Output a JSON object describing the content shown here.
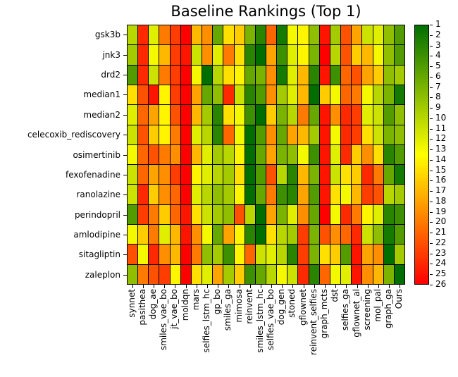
{
  "chart_data": {
    "type": "heatmap",
    "title": "Baseline Rankings (Top 1)",
    "rows": [
      "gsk3b",
      "jnk3",
      "drd2",
      "median1",
      "median2",
      "celecoxib_rediscovery",
      "osimertinib",
      "fexofenadine",
      "ranolazine",
      "perindopril",
      "amlodipine",
      "sitagliptin",
      "zaleplon"
    ],
    "columns": [
      "synnet",
      "pasithea",
      "dog_ae",
      "smiles_vae_bo",
      "jt_vae_bo",
      "moldqn",
      "mars",
      "selfies_lstm_hc",
      "gp_bo",
      "smiles_ga",
      "mimosa",
      "reinvent",
      "smiles_lstm_hc",
      "selfies_vae_bo",
      "dog_gen",
      "stoned",
      "gflownet",
      "reinvent_selfies",
      "graph_mcts",
      "dst",
      "selfies_ga",
      "gflownet_al",
      "screening",
      "mol_pal",
      "graph_ga",
      "Ours"
    ],
    "values": [
      [
        10,
        24,
        12,
        20,
        23,
        26,
        17,
        19,
        6,
        15,
        16,
        7,
        3,
        21,
        2,
        13,
        14,
        8,
        25,
        9,
        22,
        18,
        11,
        12,
        8,
        5
      ],
      [
        9,
        24,
        13,
        17,
        23,
        25,
        11,
        19,
        12,
        20,
        15,
        3,
        1,
        18,
        4,
        12,
        14,
        7,
        26,
        10,
        22,
        16,
        17,
        13,
        8,
        5
      ],
      [
        5,
        24,
        11,
        20,
        23,
        26,
        13,
        1,
        10,
        15,
        14,
        6,
        7,
        19,
        2,
        12,
        17,
        3,
        25,
        4,
        21,
        22,
        18,
        16,
        8,
        9
      ],
      [
        15,
        22,
        25,
        14,
        23,
        26,
        18,
        6,
        8,
        24,
        11,
        3,
        5,
        19,
        9,
        12,
        17,
        1,
        16,
        13,
        21,
        20,
        13,
        10,
        7,
        2
      ],
      [
        12,
        21,
        18,
        14,
        22,
        26,
        17,
        9,
        3,
        15,
        13,
        4,
        1,
        16,
        7,
        10,
        20,
        6,
        25,
        19,
        24,
        23,
        12,
        11,
        5,
        8
      ],
      [
        11,
        22,
        16,
        14,
        20,
        26,
        12,
        10,
        3,
        21,
        13,
        1,
        5,
        19,
        6,
        18,
        17,
        9,
        25,
        13,
        24,
        23,
        15,
        11,
        7,
        8
      ],
      [
        13,
        21,
        22,
        20,
        19,
        26,
        17,
        12,
        9,
        10,
        14,
        1,
        6,
        18,
        7,
        8,
        13,
        4,
        25,
        12,
        24,
        16,
        19,
        15,
        3,
        5
      ],
      [
        11,
        21,
        18,
        19,
        23,
        26,
        14,
        12,
        10,
        9,
        15,
        1,
        5,
        22,
        10,
        3,
        17,
        7,
        25,
        11,
        15,
        16,
        24,
        20,
        6,
        2
      ],
      [
        11,
        24,
        16,
        19,
        21,
        26,
        12,
        10,
        8,
        9,
        14,
        1,
        6,
        20,
        4,
        3,
        18,
        5,
        25,
        15,
        13,
        17,
        23,
        22,
        10,
        9
      ],
      [
        5,
        23,
        20,
        16,
        21,
        25,
        15,
        11,
        9,
        8,
        22,
        10,
        1,
        18,
        7,
        12,
        19,
        6,
        26,
        13,
        24,
        20,
        14,
        12,
        3,
        4
      ],
      [
        13,
        16,
        20,
        12,
        17,
        25,
        19,
        13,
        6,
        18,
        14,
        3,
        1,
        15,
        10,
        9,
        23,
        7,
        22,
        19,
        21,
        24,
        11,
        8,
        2,
        5
      ],
      [
        22,
        13,
        24,
        19,
        17,
        26,
        20,
        8,
        9,
        4,
        14,
        21,
        11,
        12,
        10,
        3,
        23,
        7,
        15,
        16,
        5,
        25,
        18,
        19,
        1,
        9
      ],
      [
        8,
        20,
        22,
        23,
        14,
        26,
        15,
        12,
        18,
        9,
        16,
        4,
        6,
        10,
        13,
        11,
        24,
        3,
        21,
        13,
        12,
        25,
        19,
        17,
        7,
        1
      ]
    ],
    "colorbar": {
      "min": 1,
      "max": 26,
      "ticks": [
        1,
        2,
        3,
        4,
        5,
        6,
        7,
        8,
        9,
        10,
        11,
        12,
        13,
        14,
        15,
        16,
        17,
        18,
        19,
        20,
        21,
        22,
        23,
        24,
        25,
        26
      ],
      "orientation": "vertical",
      "low_color": "#006e00",
      "mid_color": "#ffff00",
      "high_color": "#ff0000",
      "note": "rank 1 = dark green at top, rank 26 = red at bottom"
    },
    "layout": {
      "grid_lines": "black",
      "legend_position": "right",
      "xlabel": "",
      "ylabel": ""
    }
  }
}
